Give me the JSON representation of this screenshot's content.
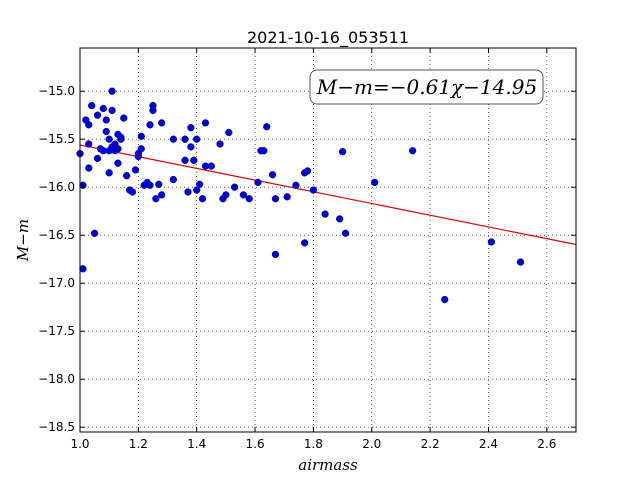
{
  "chart_data": {
    "type": "scatter",
    "title": "2021-10-16_053511",
    "xlabel": "airmass",
    "ylabel": "M−m",
    "annotation": "M−m=−0.61χ−14.95",
    "xlim": [
      1.0,
      2.7
    ],
    "ylim": [
      -18.55,
      -14.55
    ],
    "y_inverted": true,
    "grid": true,
    "grid_style": "dotted",
    "xticks": [
      1.0,
      1.2,
      1.4,
      1.6,
      1.8,
      2.0,
      2.2,
      2.4,
      2.6
    ],
    "xtick_labels": [
      "1.0",
      "1.2",
      "1.4",
      "1.6",
      "1.8",
      "2.0",
      "2.2",
      "2.4",
      "2.6"
    ],
    "yticks": [
      -15.0,
      -15.5,
      -16.0,
      -16.5,
      -17.0,
      -17.5,
      -18.0,
      -18.5
    ],
    "ytick_labels": [
      "−15.0",
      "−15.5",
      "−16.0",
      "−16.5",
      "−17.0",
      "−17.5",
      "−18.0",
      "−18.5"
    ],
    "fit": {
      "slope": -0.61,
      "intercept": -14.95,
      "color": "#dd0000"
    },
    "point_color": "#0000cc",
    "points": [
      [
        1.0,
        -15.65
      ],
      [
        1.01,
        -15.98
      ],
      [
        1.01,
        -16.85
      ],
      [
        1.02,
        -15.3
      ],
      [
        1.03,
        -15.55
      ],
      [
        1.03,
        -15.8
      ],
      [
        1.03,
        -15.35
      ],
      [
        1.04,
        -15.15
      ],
      [
        1.05,
        -16.48
      ],
      [
        1.06,
        -15.7
      ],
      [
        1.06,
        -15.25
      ],
      [
        1.07,
        -15.6
      ],
      [
        1.08,
        -15.62
      ],
      [
        1.08,
        -15.18
      ],
      [
        1.09,
        -15.42
      ],
      [
        1.09,
        -15.3
      ],
      [
        1.1,
        -15.5
      ],
      [
        1.1,
        -15.62
      ],
      [
        1.1,
        -15.85
      ],
      [
        1.11,
        -15.0
      ],
      [
        1.11,
        -15.2
      ],
      [
        1.11,
        -15.58
      ],
      [
        1.12,
        -15.55
      ],
      [
        1.12,
        -15.62
      ],
      [
        1.13,
        -15.45
      ],
      [
        1.13,
        -15.6
      ],
      [
        1.13,
        -15.75
      ],
      [
        1.14,
        -15.5
      ],
      [
        1.14,
        -15.48
      ],
      [
        1.15,
        -15.28
      ],
      [
        1.16,
        -15.88
      ],
      [
        1.17,
        -16.03
      ],
      [
        1.18,
        -16.05
      ],
      [
        1.19,
        -15.82
      ],
      [
        1.2,
        -15.68
      ],
      [
        1.2,
        -15.65
      ],
      [
        1.21,
        -15.6
      ],
      [
        1.21,
        -15.47
      ],
      [
        1.22,
        -15.98
      ],
      [
        1.23,
        -15.95
      ],
      [
        1.24,
        -15.35
      ],
      [
        1.24,
        -15.98
      ],
      [
        1.25,
        -15.15
      ],
      [
        1.25,
        -15.2
      ],
      [
        1.26,
        -16.12
      ],
      [
        1.27,
        -15.97
      ],
      [
        1.28,
        -16.08
      ],
      [
        1.28,
        -15.33
      ],
      [
        1.32,
        -15.5
      ],
      [
        1.32,
        -15.92
      ],
      [
        1.36,
        -15.5
      ],
      [
        1.36,
        -15.72
      ],
      [
        1.37,
        -16.05
      ],
      [
        1.38,
        -15.38
      ],
      [
        1.38,
        -15.58
      ],
      [
        1.39,
        -15.72
      ],
      [
        1.4,
        -16.03
      ],
      [
        1.4,
        -15.5
      ],
      [
        1.41,
        -15.97
      ],
      [
        1.42,
        -16.12
      ],
      [
        1.43,
        -15.33
      ],
      [
        1.43,
        -15.78
      ],
      [
        1.45,
        -15.78
      ],
      [
        1.48,
        -15.55
      ],
      [
        1.49,
        -16.12
      ],
      [
        1.5,
        -16.08
      ],
      [
        1.51,
        -15.43
      ],
      [
        1.53,
        -16.0
      ],
      [
        1.56,
        -16.08
      ],
      [
        1.58,
        -16.12
      ],
      [
        1.61,
        -15.95
      ],
      [
        1.62,
        -15.62
      ],
      [
        1.63,
        -15.62
      ],
      [
        1.64,
        -15.37
      ],
      [
        1.66,
        -15.87
      ],
      [
        1.67,
        -16.7
      ],
      [
        1.67,
        -16.12
      ],
      [
        1.71,
        -16.1
      ],
      [
        1.74,
        -15.98
      ],
      [
        1.77,
        -16.58
      ],
      [
        1.77,
        -15.85
      ],
      [
        1.78,
        -15.83
      ],
      [
        1.8,
        -16.03
      ],
      [
        1.84,
        -16.28
      ],
      [
        1.89,
        -16.33
      ],
      [
        1.9,
        -15.63
      ],
      [
        1.91,
        -16.48
      ],
      [
        2.01,
        -15.95
      ],
      [
        2.14,
        -15.62
      ],
      [
        2.25,
        -17.17
      ],
      [
        2.41,
        -16.57
      ],
      [
        2.51,
        -16.78
      ]
    ]
  }
}
